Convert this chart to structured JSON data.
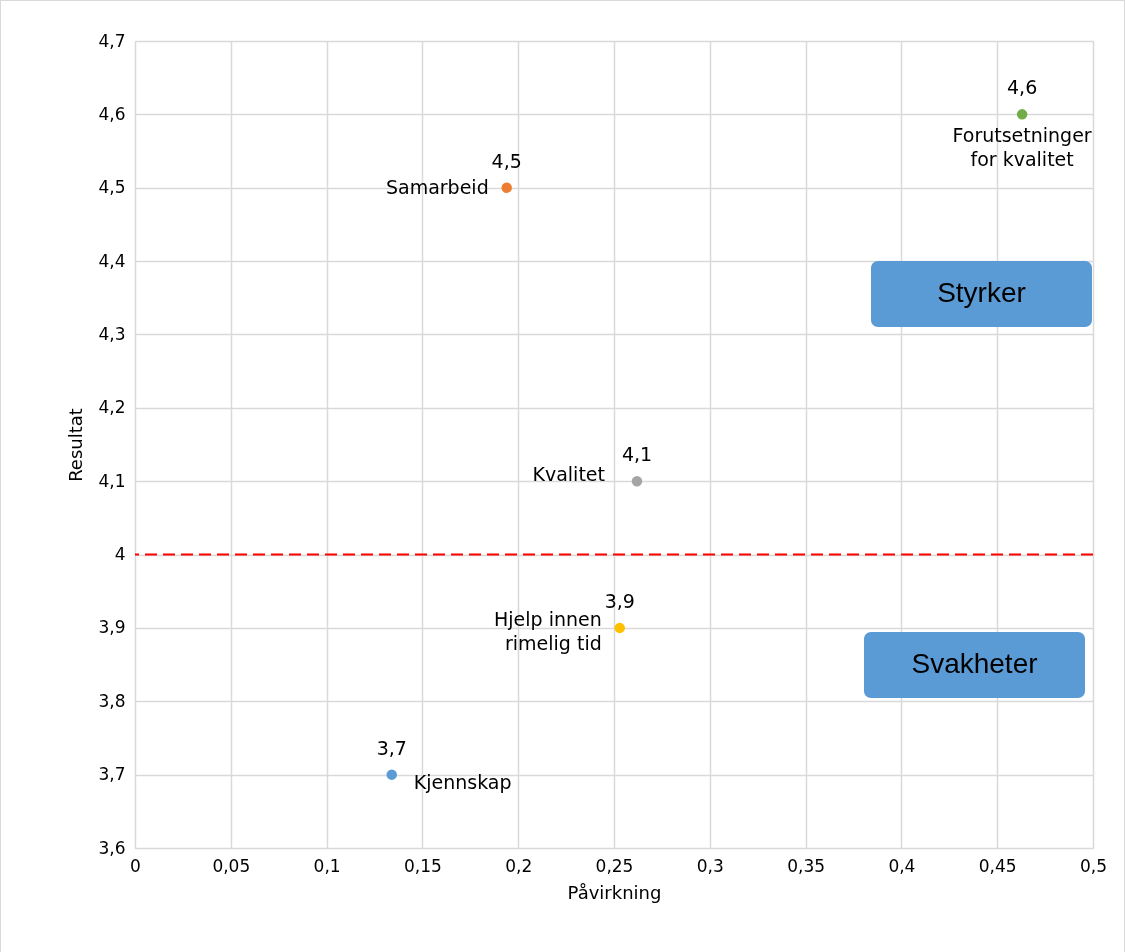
{
  "chart_data": {
    "type": "scatter",
    "xlabel": "Påvirkning",
    "ylabel": "Resultat",
    "series": [
      {
        "name": "Kjennskap",
        "color": "#5b9bd5",
        "x": [
          0.134
        ],
        "values": [
          3.7
        ],
        "value_labels": [
          "3,7"
        ]
      },
      {
        "name": "Samarbeid",
        "color": "#ed7d31",
        "x": [
          0.194
        ],
        "values": [
          4.5
        ],
        "value_labels": [
          "4,5"
        ]
      },
      {
        "name": "Hjelp innen rimelig tid",
        "color": "#ffc000",
        "x": [
          0.253
        ],
        "values": [
          3.9
        ],
        "value_labels": [
          "3,9"
        ]
      },
      {
        "name": "Kvalitet",
        "color": "#a5a5a5",
        "x": [
          0.262
        ],
        "values": [
          4.1
        ],
        "value_labels": [
          "4,1"
        ]
      },
      {
        "name": "Forutsetninger for kvalitet",
        "color": "#70ad47",
        "x": [
          0.463
        ],
        "values": [
          4.6
        ],
        "value_labels": [
          "4,6"
        ]
      }
    ],
    "xlim": [
      0,
      0.5
    ],
    "xticks": [
      0,
      {
        "value": 0.05,
        "label": "0,05"
      },
      {
        "value": 0.1,
        "label": "0,1"
      },
      {
        "value": 0.15,
        "label": "0,15"
      },
      {
        "value": 0.2,
        "label": "0,2"
      },
      {
        "value": 0.25,
        "label": "0,25"
      },
      {
        "value": 0.3,
        "label": "0,3"
      },
      {
        "value": 0.35,
        "label": "0,35"
      },
      {
        "value": 0.4,
        "label": "0,4"
      },
      {
        "value": 0.45,
        "label": "0,45"
      },
      {
        "value": 0.5,
        "label": "0,5"
      }
    ],
    "ylim": [
      3.6,
      4.7
    ],
    "yticks": [
      {
        "value": 3.6,
        "label": "3,6"
      },
      {
        "value": 3.7,
        "label": "3,7"
      },
      {
        "value": 3.8,
        "label": "3,8"
      },
      {
        "value": 3.9,
        "label": "3,9"
      },
      4,
      {
        "value": 4.1,
        "label": "4,1"
      },
      {
        "value": 4.2,
        "label": "4,2"
      },
      {
        "value": 4.3,
        "label": "4,3"
      },
      {
        "value": 4.4,
        "label": "4,4"
      },
      {
        "value": 4.5,
        "label": "4,5"
      },
      {
        "value": 4.6,
        "label": "4,6"
      },
      {
        "value": 4.7,
        "label": "4,7"
      }
    ],
    "ref_lines": [
      {
        "axis": "y",
        "value": 4,
        "color": "#ff0000",
        "line_style": "dashed"
      }
    ],
    "annotations": [
      "Styrker",
      "Svakheter"
    ],
    "grid": true,
    "marker": "circle"
  }
}
